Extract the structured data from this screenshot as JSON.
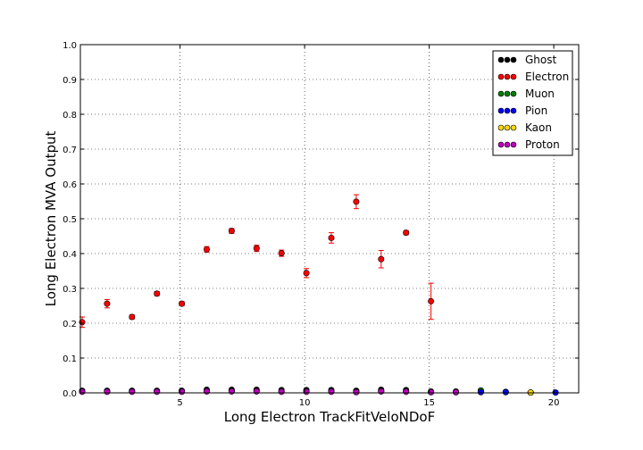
{
  "chart_data": {
    "type": "scatter",
    "xlabel": "Long Electron TrackFitVeloNDoF",
    "ylabel": "Long Electron MVA Output",
    "xlim": [
      1,
      21
    ],
    "ylim": [
      0,
      1
    ],
    "xticks": [
      5,
      10,
      15,
      20
    ],
    "yticks": [
      0.0,
      0.1,
      0.2,
      0.3,
      0.4,
      0.5,
      0.6,
      0.7,
      0.8,
      0.9,
      1.0
    ],
    "grid": true,
    "legend_position": "top-right",
    "series": [
      {
        "name": "Ghost",
        "color": "#000000",
        "points": [
          [
            1,
            0.006
          ],
          [
            2,
            0.006
          ],
          [
            3,
            0.006
          ],
          [
            4,
            0.006
          ],
          [
            5,
            0.006
          ],
          [
            6,
            0.009
          ],
          [
            7,
            0.009
          ],
          [
            8,
            0.009
          ],
          [
            9,
            0.008
          ],
          [
            10,
            0.008
          ],
          [
            11,
            0.008
          ],
          [
            12,
            0.006
          ],
          [
            13,
            0.009
          ],
          [
            14,
            0.008
          ],
          [
            15,
            0.004
          ],
          [
            16,
            0.004
          ],
          [
            17,
            0.004
          ],
          [
            18,
            0.003
          ]
        ]
      },
      {
        "name": "Electron",
        "color": "#ff0000",
        "points": [
          [
            1,
            0.203
          ],
          [
            2,
            0.256
          ],
          [
            3,
            0.218
          ],
          [
            4,
            0.285
          ],
          [
            5,
            0.256
          ],
          [
            6,
            0.412
          ],
          [
            7,
            0.465
          ],
          [
            8,
            0.415
          ],
          [
            9,
            0.401
          ],
          [
            10,
            0.344
          ],
          [
            11,
            0.445
          ],
          [
            12,
            0.549
          ],
          [
            13,
            0.384
          ],
          [
            14,
            0.46
          ],
          [
            15,
            0.263
          ]
        ],
        "errors": [
          0.015,
          0.012,
          0.006,
          0.006,
          0.006,
          0.008,
          0.007,
          0.009,
          0.009,
          0.013,
          0.015,
          0.02,
          0.025,
          0.006,
          0.052
        ]
      },
      {
        "name": "Muon",
        "color": "#008000",
        "points": [
          [
            17,
            0.007
          ]
        ]
      },
      {
        "name": "Pion",
        "color": "#0000ff",
        "points": [
          [
            1,
            0.004
          ],
          [
            2,
            0.004
          ],
          [
            3,
            0.004
          ],
          [
            4,
            0.004
          ],
          [
            5,
            0.004
          ],
          [
            6,
            0.005
          ],
          [
            7,
            0.005
          ],
          [
            8,
            0.005
          ],
          [
            9,
            0.004
          ],
          [
            10,
            0.004
          ],
          [
            11,
            0.004
          ],
          [
            12,
            0.003
          ],
          [
            13,
            0.005
          ],
          [
            14,
            0.004
          ],
          [
            15,
            0.002
          ],
          [
            16,
            0.002
          ],
          [
            17,
            0.002
          ],
          [
            18,
            0.002
          ],
          [
            19,
            0.001
          ],
          [
            20,
            0.001
          ]
        ]
      },
      {
        "name": "Kaon",
        "color": "#ffd700",
        "points": [
          [
            19,
            0.001
          ]
        ]
      },
      {
        "name": "Proton",
        "color": "#bf00bf",
        "points": [
          [
            1,
            0.003
          ],
          [
            2,
            0.003
          ],
          [
            3,
            0.003
          ],
          [
            4,
            0.003
          ],
          [
            5,
            0.003
          ],
          [
            6,
            0.004
          ],
          [
            7,
            0.004
          ],
          [
            8,
            0.004
          ],
          [
            9,
            0.003
          ],
          [
            10,
            0.003
          ],
          [
            11,
            0.003
          ],
          [
            12,
            0.002
          ],
          [
            13,
            0.004
          ],
          [
            14,
            0.003
          ],
          [
            15,
            0.002
          ],
          [
            16,
            0.002
          ]
        ]
      }
    ]
  }
}
